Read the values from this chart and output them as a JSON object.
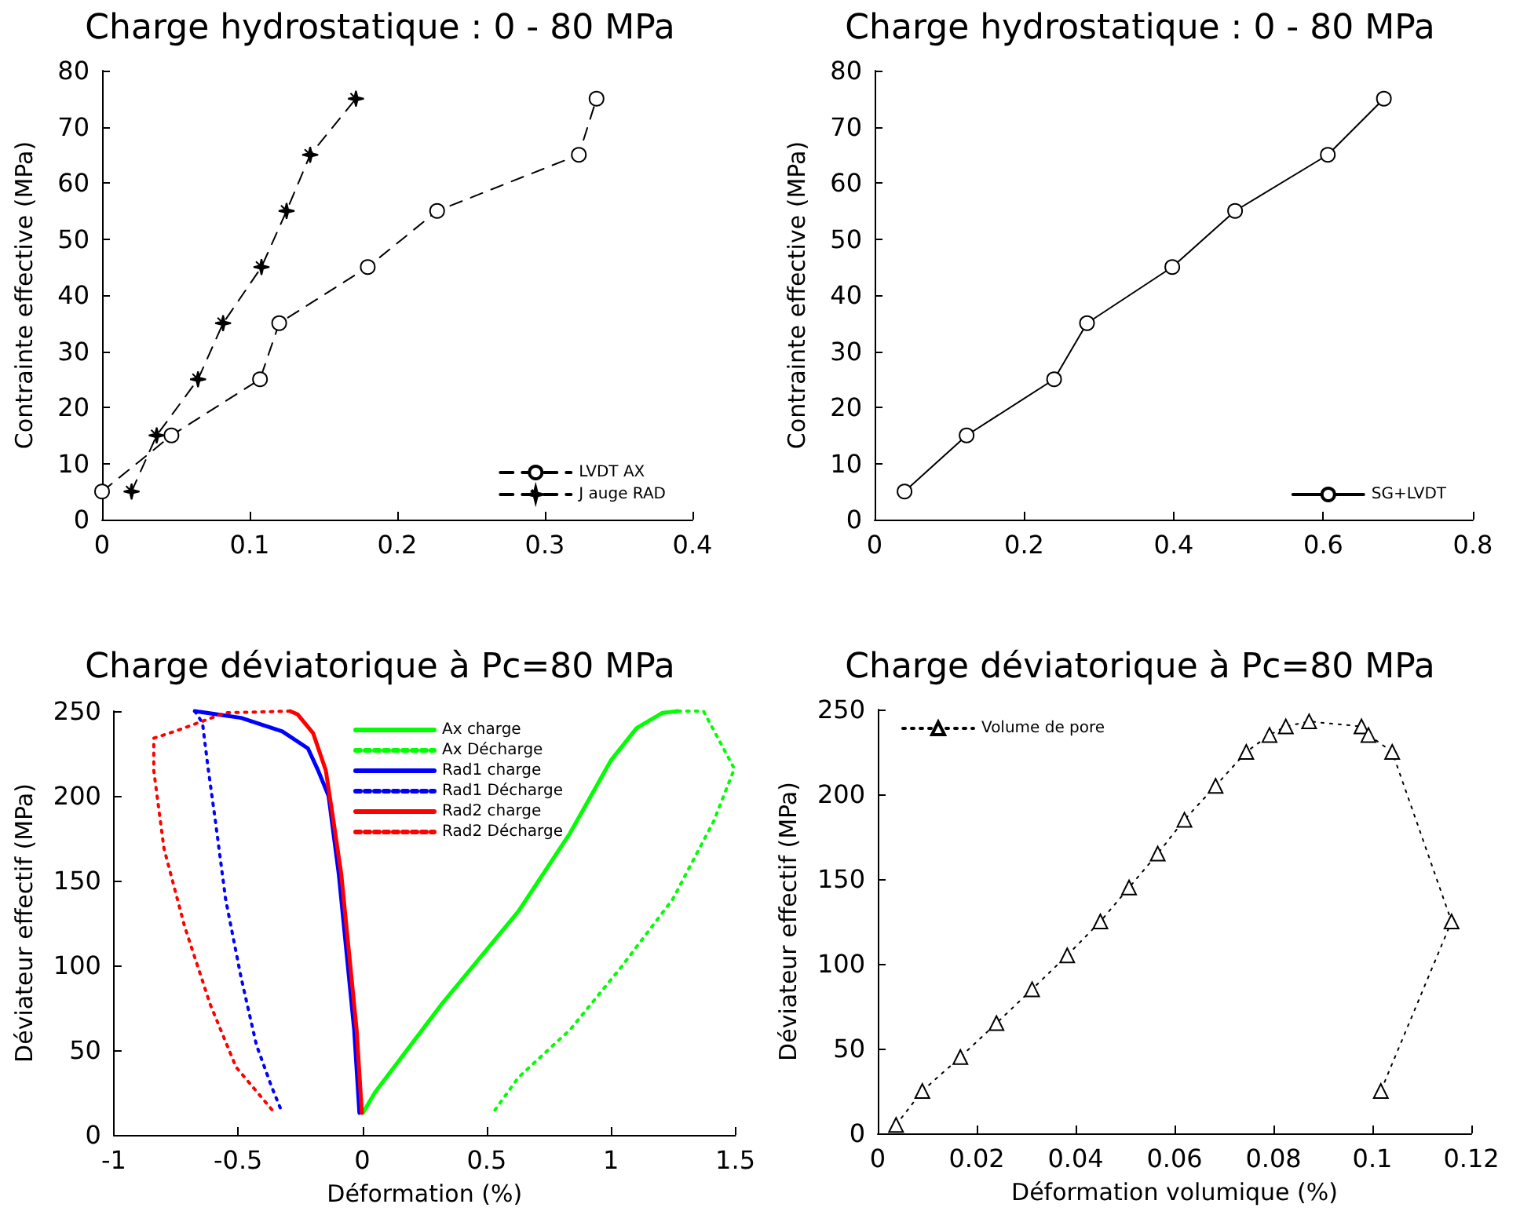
{
  "chart_data": [
    {
      "type": "line",
      "title": "Charge hydrostatique : 0 - 80 MPa",
      "ylabel": "Contrainte effective (MPa)",
      "xlim": [
        0,
        0.4
      ],
      "xticks": [
        0,
        0.1,
        0.2,
        0.3,
        0.4
      ],
      "ylim": [
        0,
        80
      ],
      "yticks": [
        0,
        10,
        20,
        30,
        40,
        50,
        60,
        70,
        80
      ],
      "grid": false,
      "legend": "bottom right",
      "series": [
        {
          "name": "LVDT AX",
          "color": "#000000",
          "marker": "circle",
          "line_style": "dashed",
          "x": [
            0,
            0.047,
            0.107,
            0.12,
            0.18,
            0.227,
            0.323,
            0.335
          ],
          "values": [
            5,
            15,
            25,
            35,
            45,
            55,
            65,
            75
          ]
        },
        {
          "name": "J auge RAD",
          "color": "#000000",
          "marker": "star",
          "line_style": "dashed",
          "x": [
            0.02,
            0.037,
            0.065,
            0.082,
            0.108,
            0.125,
            0.141,
            0.172
          ],
          "values": [
            5,
            15,
            25,
            35,
            45,
            55,
            65,
            75
          ]
        }
      ]
    },
    {
      "type": "line",
      "title": "Charge hydrostatique : 0 - 80 MPa",
      "ylabel": "Contrainte effective (MPa)",
      "xlim": [
        0,
        0.8
      ],
      "xticks": [
        0,
        0.2,
        0.4,
        0.6,
        0.8
      ],
      "ylim": [
        0,
        80
      ],
      "yticks": [
        0,
        10,
        20,
        30,
        40,
        50,
        60,
        70,
        80
      ],
      "grid": false,
      "legend": "bottom right",
      "series": [
        {
          "name": "SG+LVDT",
          "color": "#000000",
          "marker": "circle",
          "line_style": "solid",
          "x": [
            0.04,
            0.123,
            0.24,
            0.284,
            0.398,
            0.482,
            0.606,
            0.681
          ],
          "values": [
            5,
            15,
            25,
            35,
            45,
            55,
            65,
            75
          ]
        }
      ]
    },
    {
      "type": "line",
      "title": "Charge déviatorique à Pc=80 MPa",
      "xlabel": "Déformation (%)",
      "ylabel": "Déviateur effectif (MPa)",
      "xlim": [
        -1,
        1.5
      ],
      "xticks": [
        -1,
        -0.5,
        0,
        0.5,
        1,
        1.5
      ],
      "ylim": [
        0,
        250
      ],
      "yticks": [
        0,
        50,
        100,
        150,
        200,
        250
      ],
      "grid": false,
      "legend": "top",
      "series": [
        {
          "name": "Ax charge",
          "color": "#00ff00",
          "marker": "none",
          "line_style": "solid",
          "x": [
            0.002,
            0.05,
            0.318,
            0.628,
            0.835,
            1.0,
            1.103,
            1.207,
            1.27
          ],
          "values": [
            13,
            25,
            77,
            132,
            178,
            221,
            240,
            249,
            250
          ]
        },
        {
          "name": "Ax Décharge",
          "color": "#00ff00",
          "marker": "none",
          "line_style": "dotted",
          "x": [
            1.27,
            1.372,
            1.496,
            1.413,
            1.248,
            1.041,
            0.835,
            0.628,
            0.525
          ],
          "values": [
            250,
            250,
            216,
            185,
            139,
            99,
            62,
            34,
            13
          ]
        },
        {
          "name": "Rad1 charge",
          "color": "#0000ff",
          "marker": "none",
          "line_style": "solid",
          "x": [
            -0.012,
            -0.033,
            -0.064,
            -0.095,
            -0.136,
            -0.178,
            -0.219,
            -0.322,
            -0.488,
            -0.674
          ],
          "values": [
            13,
            62,
            108,
            154,
            200,
            215,
            228,
            238,
            246,
            250
          ]
        },
        {
          "name": "Rad1 Décharge",
          "color": "#0000ff",
          "marker": "none",
          "line_style": "dotted",
          "x": [
            -0.674,
            -0.643,
            -0.622,
            -0.591,
            -0.55,
            -0.488,
            -0.426,
            -0.364,
            -0.322
          ],
          "values": [
            250,
            243,
            218,
            185,
            139,
            93,
            53,
            28,
            13
          ]
        },
        {
          "name": "Rad2 charge",
          "color": "#ff0000",
          "marker": "none",
          "line_style": "solid",
          "x": [
            -0.002,
            -0.023,
            -0.054,
            -0.085,
            -0.116,
            -0.147,
            -0.198,
            -0.26,
            -0.291
          ],
          "values": [
            13,
            62,
            108,
            154,
            185,
            215,
            237,
            248,
            250
          ]
        },
        {
          "name": "Rad2 Décharge",
          "color": "#ff0000",
          "marker": "none",
          "line_style": "dotted",
          "x": [
            -0.291,
            -0.55,
            -0.756,
            -0.839,
            -0.839,
            -0.798,
            -0.715,
            -0.612,
            -0.508,
            -0.353
          ],
          "values": [
            250,
            249,
            238,
            234,
            215,
            169,
            123,
            77,
            40,
            13
          ]
        }
      ]
    },
    {
      "type": "line",
      "title": "Charge déviatorique à Pc=80 MPa",
      "xlabel": "Déformation volumique (%)",
      "ylabel": "Déviateur effectif (MPa)",
      "xlim": [
        0,
        0.12
      ],
      "xticks": [
        0,
        0.02,
        0.04,
        0.06,
        0.08,
        0.1,
        0.12
      ],
      "ylim": [
        0,
        250
      ],
      "yticks": [
        0,
        50,
        100,
        150,
        200,
        250
      ],
      "grid": false,
      "legend": "top left",
      "series": [
        {
          "name": "Volume de pore",
          "color": "#000000",
          "marker": "triangle",
          "line_style": "dotted",
          "x": [
            0.0037,
            0.009,
            0.0167,
            0.024,
            0.0312,
            0.0383,
            0.045,
            0.0508,
            0.0566,
            0.062,
            0.0683,
            0.0745,
            0.0792,
            0.0825,
            0.0872,
            0.0978,
            0.0992,
            0.104,
            0.116,
            0.1017
          ],
          "values": [
            5,
            25,
            45,
            65,
            85,
            105,
            125,
            145,
            165,
            185,
            205,
            225,
            235,
            240,
            243,
            240,
            235,
            225,
            125,
            25
          ]
        }
      ]
    }
  ]
}
